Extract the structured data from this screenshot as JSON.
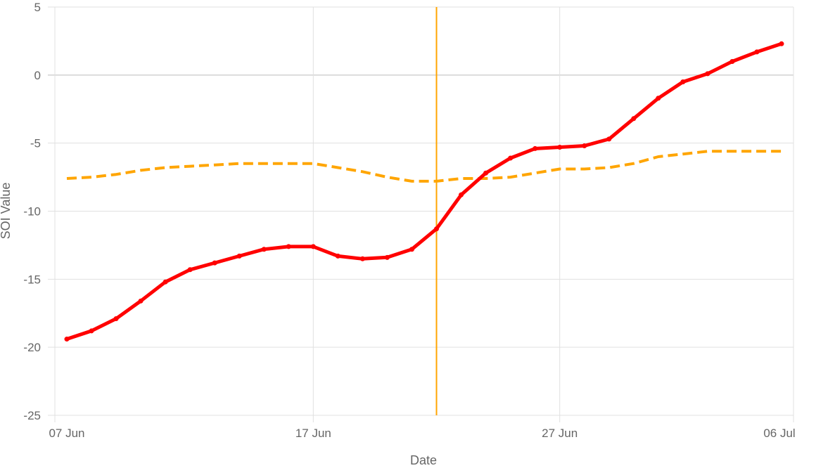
{
  "chart_data": {
    "type": "line",
    "title": "",
    "xlabel": "Date",
    "ylabel": "SOI Value",
    "ylim": [
      -25,
      5
    ],
    "y_ticks": [
      5,
      0,
      -5,
      -10,
      -15,
      -20,
      -25
    ],
    "y_tick_labels": [
      "5",
      "0",
      "-5",
      "-10",
      "-15",
      "-20",
      "-25"
    ],
    "x_start": "2024-06-07",
    "x_end": "2024-07-06",
    "x_ticks": [
      "2024-06-07",
      "2024-06-17",
      "2024-06-27",
      "2024-07-06"
    ],
    "x_tick_labels": [
      "07 Jun",
      "17 Jun",
      "27 Jun",
      "06 Jul"
    ],
    "zero_line": 0,
    "marker_line_x": "2024-06-22",
    "grid": true,
    "legend": "none",
    "x": [
      "2024-06-07",
      "2024-06-08",
      "2024-06-09",
      "2024-06-10",
      "2024-06-11",
      "2024-06-12",
      "2024-06-13",
      "2024-06-14",
      "2024-06-15",
      "2024-06-16",
      "2024-06-17",
      "2024-06-18",
      "2024-06-19",
      "2024-06-20",
      "2024-06-21",
      "2024-06-22",
      "2024-06-23",
      "2024-06-24",
      "2024-06-25",
      "2024-06-26",
      "2024-06-27",
      "2024-06-28",
      "2024-06-29",
      "2024-06-30",
      "2024-07-01",
      "2024-07-02",
      "2024-07-03",
      "2024-07-04",
      "2024-07-05",
      "2024-07-06"
    ],
    "series": [
      {
        "color": "#ff0000",
        "style": "solid",
        "values": [
          -19.4,
          -18.8,
          -17.9,
          -16.6,
          -15.2,
          -14.3,
          -13.8,
          -13.3,
          -12.8,
          -12.6,
          -12.6,
          -13.3,
          -13.5,
          -13.4,
          -12.8,
          -11.3,
          -8.8,
          -7.2,
          -6.1,
          -5.4,
          -5.3,
          -5.2,
          -4.7,
          -3.2,
          -1.7,
          -0.5,
          0.1,
          1.0,
          1.7,
          2.3
        ]
      },
      {
        "color": "#ffa500",
        "style": "dashed",
        "values": [
          -7.6,
          -7.5,
          -7.3,
          -7.0,
          -6.8,
          -6.7,
          -6.6,
          -6.5,
          -6.5,
          -6.5,
          -6.5,
          -6.8,
          -7.1,
          -7.5,
          -7.8,
          -7.8,
          -7.6,
          -7.6,
          -7.5,
          -7.2,
          -6.9,
          -6.9,
          -6.8,
          -6.5,
          -6.0,
          -5.8,
          -5.6,
          -5.6,
          -5.6,
          -5.6
        ]
      }
    ]
  },
  "colors": {
    "grid": "#e0e0e0",
    "zero_line": "#bbbbbb",
    "marker_line": "#ffa500",
    "tick_text": "#666666"
  }
}
